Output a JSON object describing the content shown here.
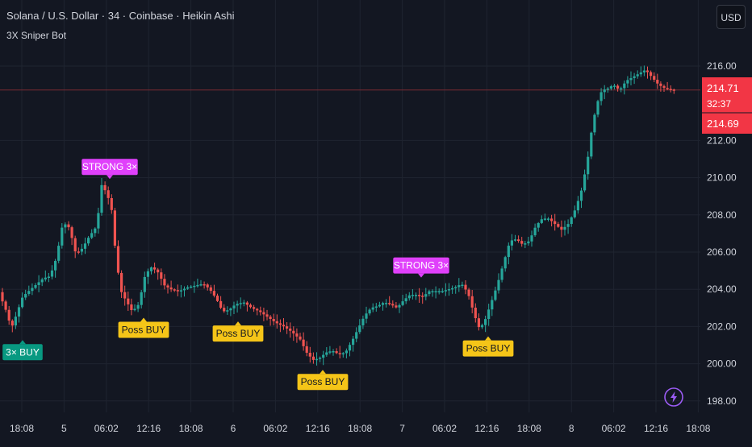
{
  "header": {
    "title": "Solana / U.S. Dollar · 34 · Coinbase · Heikin Ashi",
    "indicator": "3X Sniper Bot"
  },
  "toolbar": {
    "currency_label": "USD"
  },
  "price_badge": {
    "price": "214.71",
    "countdown": "32:37",
    "second_price": "214.69",
    "color": "#f23645"
  },
  "icons": {
    "bolt": "lightning-icon"
  },
  "colors": {
    "up": "#26a69a",
    "down": "#ef5350",
    "strong": "#e040fb",
    "poss": "#f5c518",
    "buy3x": "#089981",
    "bg": "#131722",
    "grid": "#1f2430",
    "axis_text": "#d1d4dc"
  },
  "chart_data": {
    "type": "candlestick",
    "title": "Solana / U.S. Dollar · 34 · Coinbase · Heikin Ashi",
    "ylim": [
      197.5,
      217.6
    ],
    "y_ticks": [
      "216.00",
      "212.00",
      "210.00",
      "208.00",
      "206.00",
      "204.00",
      "202.00",
      "200.00",
      "198.00"
    ],
    "x_ticks": [
      "18:08",
      "5",
      "06:02",
      "12:16",
      "18:08",
      "6",
      "06:02",
      "12:16",
      "18:08",
      "7",
      "06:02",
      "12:16",
      "18:08",
      "8",
      "06:02",
      "12:16",
      "18:08"
    ],
    "current_price": 214.71,
    "price_path": [
      [
        0,
        203.9
      ],
      [
        10,
        202.8
      ],
      [
        16,
        201.9
      ],
      [
        22,
        202.6
      ],
      [
        30,
        203.6
      ],
      [
        40,
        204.0
      ],
      [
        48,
        204.3
      ],
      [
        56,
        204.6
      ],
      [
        64,
        204.7
      ],
      [
        72,
        205.7
      ],
      [
        80,
        207.6
      ],
      [
        88,
        207.3
      ],
      [
        96,
        205.9
      ],
      [
        104,
        206.2
      ],
      [
        112,
        206.8
      ],
      [
        122,
        207.4
      ],
      [
        128,
        209.6
      ],
      [
        134,
        209.2
      ],
      [
        140,
        208.4
      ],
      [
        146,
        205.6
      ],
      [
        152,
        203.9
      ],
      [
        158,
        203.4
      ],
      [
        166,
        202.8
      ],
      [
        174,
        203.2
      ],
      [
        182,
        204.8
      ],
      [
        190,
        205.2
      ],
      [
        198,
        204.9
      ],
      [
        206,
        204.2
      ],
      [
        214,
        204.0
      ],
      [
        224,
        203.9
      ],
      [
        234,
        204.1
      ],
      [
        244,
        204.2
      ],
      [
        254,
        204.3
      ],
      [
        262,
        204.0
      ],
      [
        270,
        203.5
      ],
      [
        278,
        202.8
      ],
      [
        286,
        202.9
      ],
      [
        294,
        203.2
      ],
      [
        304,
        203.3
      ],
      [
        314,
        203.0
      ],
      [
        324,
        202.8
      ],
      [
        334,
        202.5
      ],
      [
        344,
        202.2
      ],
      [
        354,
        202.0
      ],
      [
        364,
        201.7
      ],
      [
        374,
        201.3
      ],
      [
        382,
        200.6
      ],
      [
        390,
        200.2
      ],
      [
        398,
        200.3
      ],
      [
        406,
        200.6
      ],
      [
        414,
        200.7
      ],
      [
        422,
        200.5
      ],
      [
        430,
        200.6
      ],
      [
        438,
        201.2
      ],
      [
        446,
        201.9
      ],
      [
        454,
        202.6
      ],
      [
        462,
        203.0
      ],
      [
        470,
        203.1
      ],
      [
        478,
        203.3
      ],
      [
        486,
        203.2
      ],
      [
        494,
        203.0
      ],
      [
        502,
        203.4
      ],
      [
        510,
        203.7
      ],
      [
        518,
        203.7
      ],
      [
        526,
        203.6
      ],
      [
        534,
        203.9
      ],
      [
        542,
        203.9
      ],
      [
        550,
        203.9
      ],
      [
        558,
        204.0
      ],
      [
        566,
        204.1
      ],
      [
        574,
        204.3
      ],
      [
        582,
        203.8
      ],
      [
        590,
        202.6
      ],
      [
        596,
        201.9
      ],
      [
        602,
        202.2
      ],
      [
        610,
        203.2
      ],
      [
        618,
        204.2
      ],
      [
        626,
        205.4
      ],
      [
        634,
        206.6
      ],
      [
        642,
        206.7
      ],
      [
        650,
        206.4
      ],
      [
        658,
        206.6
      ],
      [
        666,
        207.4
      ],
      [
        674,
        207.8
      ],
      [
        682,
        207.8
      ],
      [
        690,
        207.5
      ],
      [
        698,
        207.2
      ],
      [
        706,
        207.5
      ],
      [
        714,
        208.2
      ],
      [
        722,
        209.2
      ],
      [
        730,
        210.9
      ],
      [
        736,
        212.8
      ],
      [
        742,
        214.0
      ],
      [
        748,
        214.7
      ],
      [
        756,
        214.8
      ],
      [
        762,
        215.0
      ],
      [
        770,
        214.7
      ],
      [
        778,
        215.2
      ],
      [
        786,
        215.4
      ],
      [
        794,
        215.6
      ],
      [
        802,
        215.8
      ],
      [
        810,
        215.4
      ],
      [
        818,
        215.0
      ],
      [
        826,
        214.8
      ],
      [
        836,
        214.71
      ]
    ],
    "signals": [
      {
        "label": "3× BUY",
        "x": 28,
        "price": 201.4,
        "kind": "buy3x",
        "pos": "below"
      },
      {
        "label": "STRONG 3×",
        "x": 136,
        "price": 209.8,
        "kind": "strong",
        "pos": "above"
      },
      {
        "label": "Poss BUY",
        "x": 178,
        "price": 202.6,
        "kind": "poss",
        "pos": "below"
      },
      {
        "label": "Poss BUY",
        "x": 295,
        "price": 202.4,
        "kind": "poss",
        "pos": "below"
      },
      {
        "label": "Poss BUY",
        "x": 400,
        "price": 199.8,
        "kind": "poss",
        "pos": "below"
      },
      {
        "label": "STRONG 3×",
        "x": 522,
        "price": 204.5,
        "kind": "strong",
        "pos": "above"
      },
      {
        "label": "Poss BUY",
        "x": 605,
        "price": 201.6,
        "kind": "poss",
        "pos": "below"
      }
    ]
  }
}
